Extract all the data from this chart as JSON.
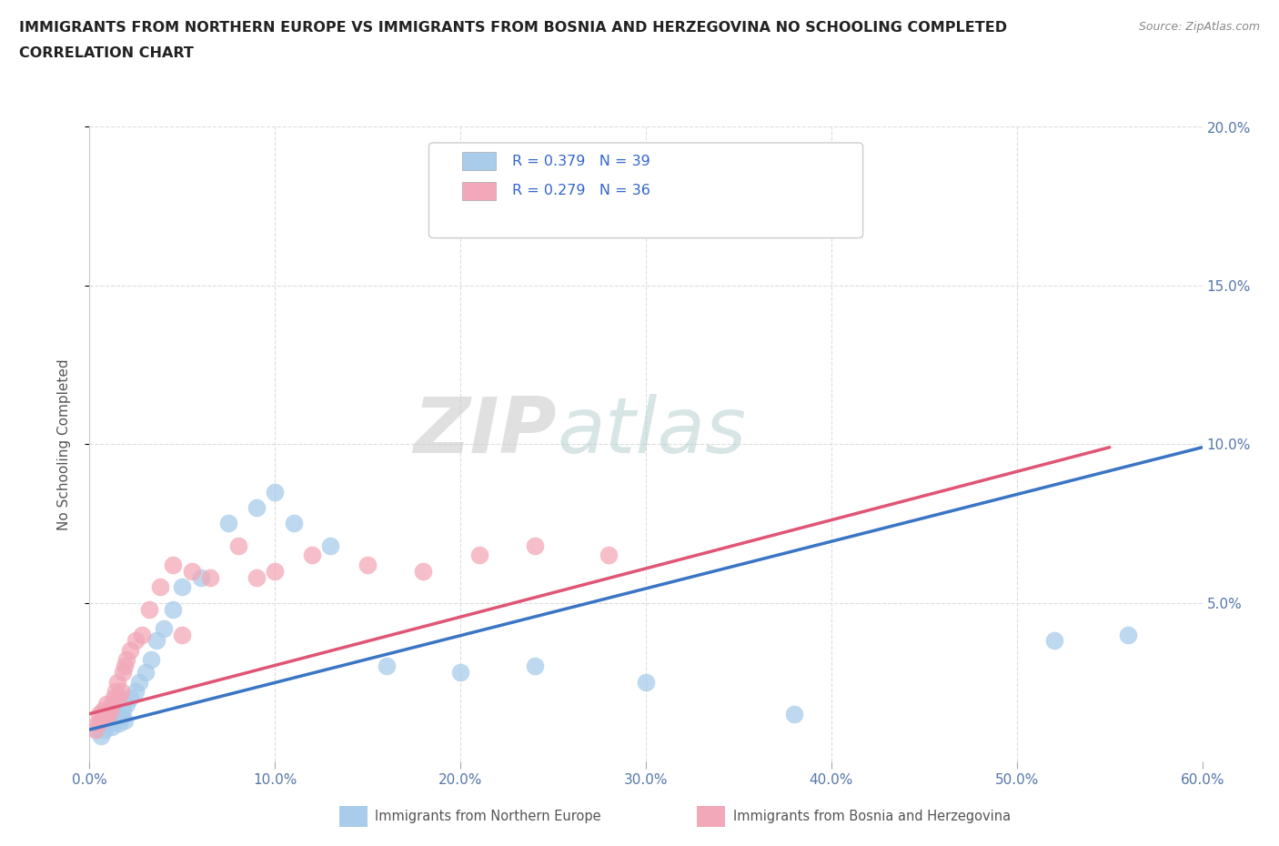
{
  "title_line1": "IMMIGRANTS FROM NORTHERN EUROPE VS IMMIGRANTS FROM BOSNIA AND HERZEGOVINA NO SCHOOLING COMPLETED",
  "title_line2": "CORRELATION CHART",
  "source_text": "Source: ZipAtlas.com",
  "ylabel": "No Schooling Completed",
  "xlim": [
    0.0,
    0.6
  ],
  "ylim": [
    0.0,
    0.2
  ],
  "xticks": [
    0.0,
    0.1,
    0.2,
    0.3,
    0.4,
    0.5,
    0.6
  ],
  "yticks": [
    0.05,
    0.1,
    0.15,
    0.2
  ],
  "xticklabels": [
    "0.0%",
    "10.0%",
    "20.0%",
    "30.0%",
    "40.0%",
    "50.0%",
    "60.0%"
  ],
  "yticklabels_right": [
    "5.0%",
    "10.0%",
    "15.0%",
    "20.0%"
  ],
  "blue_R": "0.379",
  "blue_N": "39",
  "pink_R": "0.279",
  "pink_N": "36",
  "blue_color": "#A8CCEA",
  "pink_color": "#F2A8B8",
  "blue_line_color": "#3A75C4",
  "pink_line_color": "#E05575",
  "watermark_zip": "ZIP",
  "watermark_atlas": "atlas",
  "blue_scatter_x": [
    0.003,
    0.005,
    0.006,
    0.007,
    0.008,
    0.009,
    0.01,
    0.011,
    0.012,
    0.013,
    0.014,
    0.015,
    0.016,
    0.017,
    0.018,
    0.019,
    0.02,
    0.022,
    0.025,
    0.027,
    0.03,
    0.033,
    0.036,
    0.04,
    0.045,
    0.05,
    0.06,
    0.075,
    0.09,
    0.1,
    0.11,
    0.13,
    0.16,
    0.2,
    0.24,
    0.3,
    0.38,
    0.52,
    0.56
  ],
  "blue_scatter_y": [
    0.01,
    0.012,
    0.008,
    0.015,
    0.01,
    0.013,
    0.012,
    0.014,
    0.011,
    0.016,
    0.013,
    0.015,
    0.012,
    0.014,
    0.016,
    0.013,
    0.018,
    0.02,
    0.022,
    0.025,
    0.028,
    0.032,
    0.038,
    0.042,
    0.048,
    0.055,
    0.058,
    0.075,
    0.08,
    0.085,
    0.075,
    0.068,
    0.03,
    0.028,
    0.03,
    0.025,
    0.015,
    0.038,
    0.04
  ],
  "pink_scatter_x": [
    0.003,
    0.004,
    0.005,
    0.006,
    0.007,
    0.008,
    0.009,
    0.01,
    0.011,
    0.012,
    0.013,
    0.014,
    0.015,
    0.016,
    0.017,
    0.018,
    0.019,
    0.02,
    0.022,
    0.025,
    0.028,
    0.032,
    0.038,
    0.045,
    0.055,
    0.065,
    0.08,
    0.1,
    0.12,
    0.15,
    0.18,
    0.21,
    0.24,
    0.28,
    0.05,
    0.09
  ],
  "pink_scatter_y": [
    0.01,
    0.012,
    0.015,
    0.013,
    0.016,
    0.014,
    0.018,
    0.015,
    0.016,
    0.018,
    0.02,
    0.022,
    0.025,
    0.02,
    0.022,
    0.028,
    0.03,
    0.032,
    0.035,
    0.038,
    0.04,
    0.048,
    0.055,
    0.062,
    0.06,
    0.058,
    0.068,
    0.06,
    0.065,
    0.062,
    0.06,
    0.065,
    0.068,
    0.065,
    0.04,
    0.058
  ],
  "blue_trend_x": [
    0.0,
    0.6
  ],
  "blue_trend_y": [
    0.01,
    0.099
  ],
  "pink_trend_x": [
    0.0,
    0.55
  ],
  "pink_trend_y": [
    0.015,
    0.099
  ],
  "background_color": "#FFFFFF",
  "grid_color": "#DDDDDD",
  "tick_color": "#5577AA",
  "legend_text_color": "#3366CC"
}
